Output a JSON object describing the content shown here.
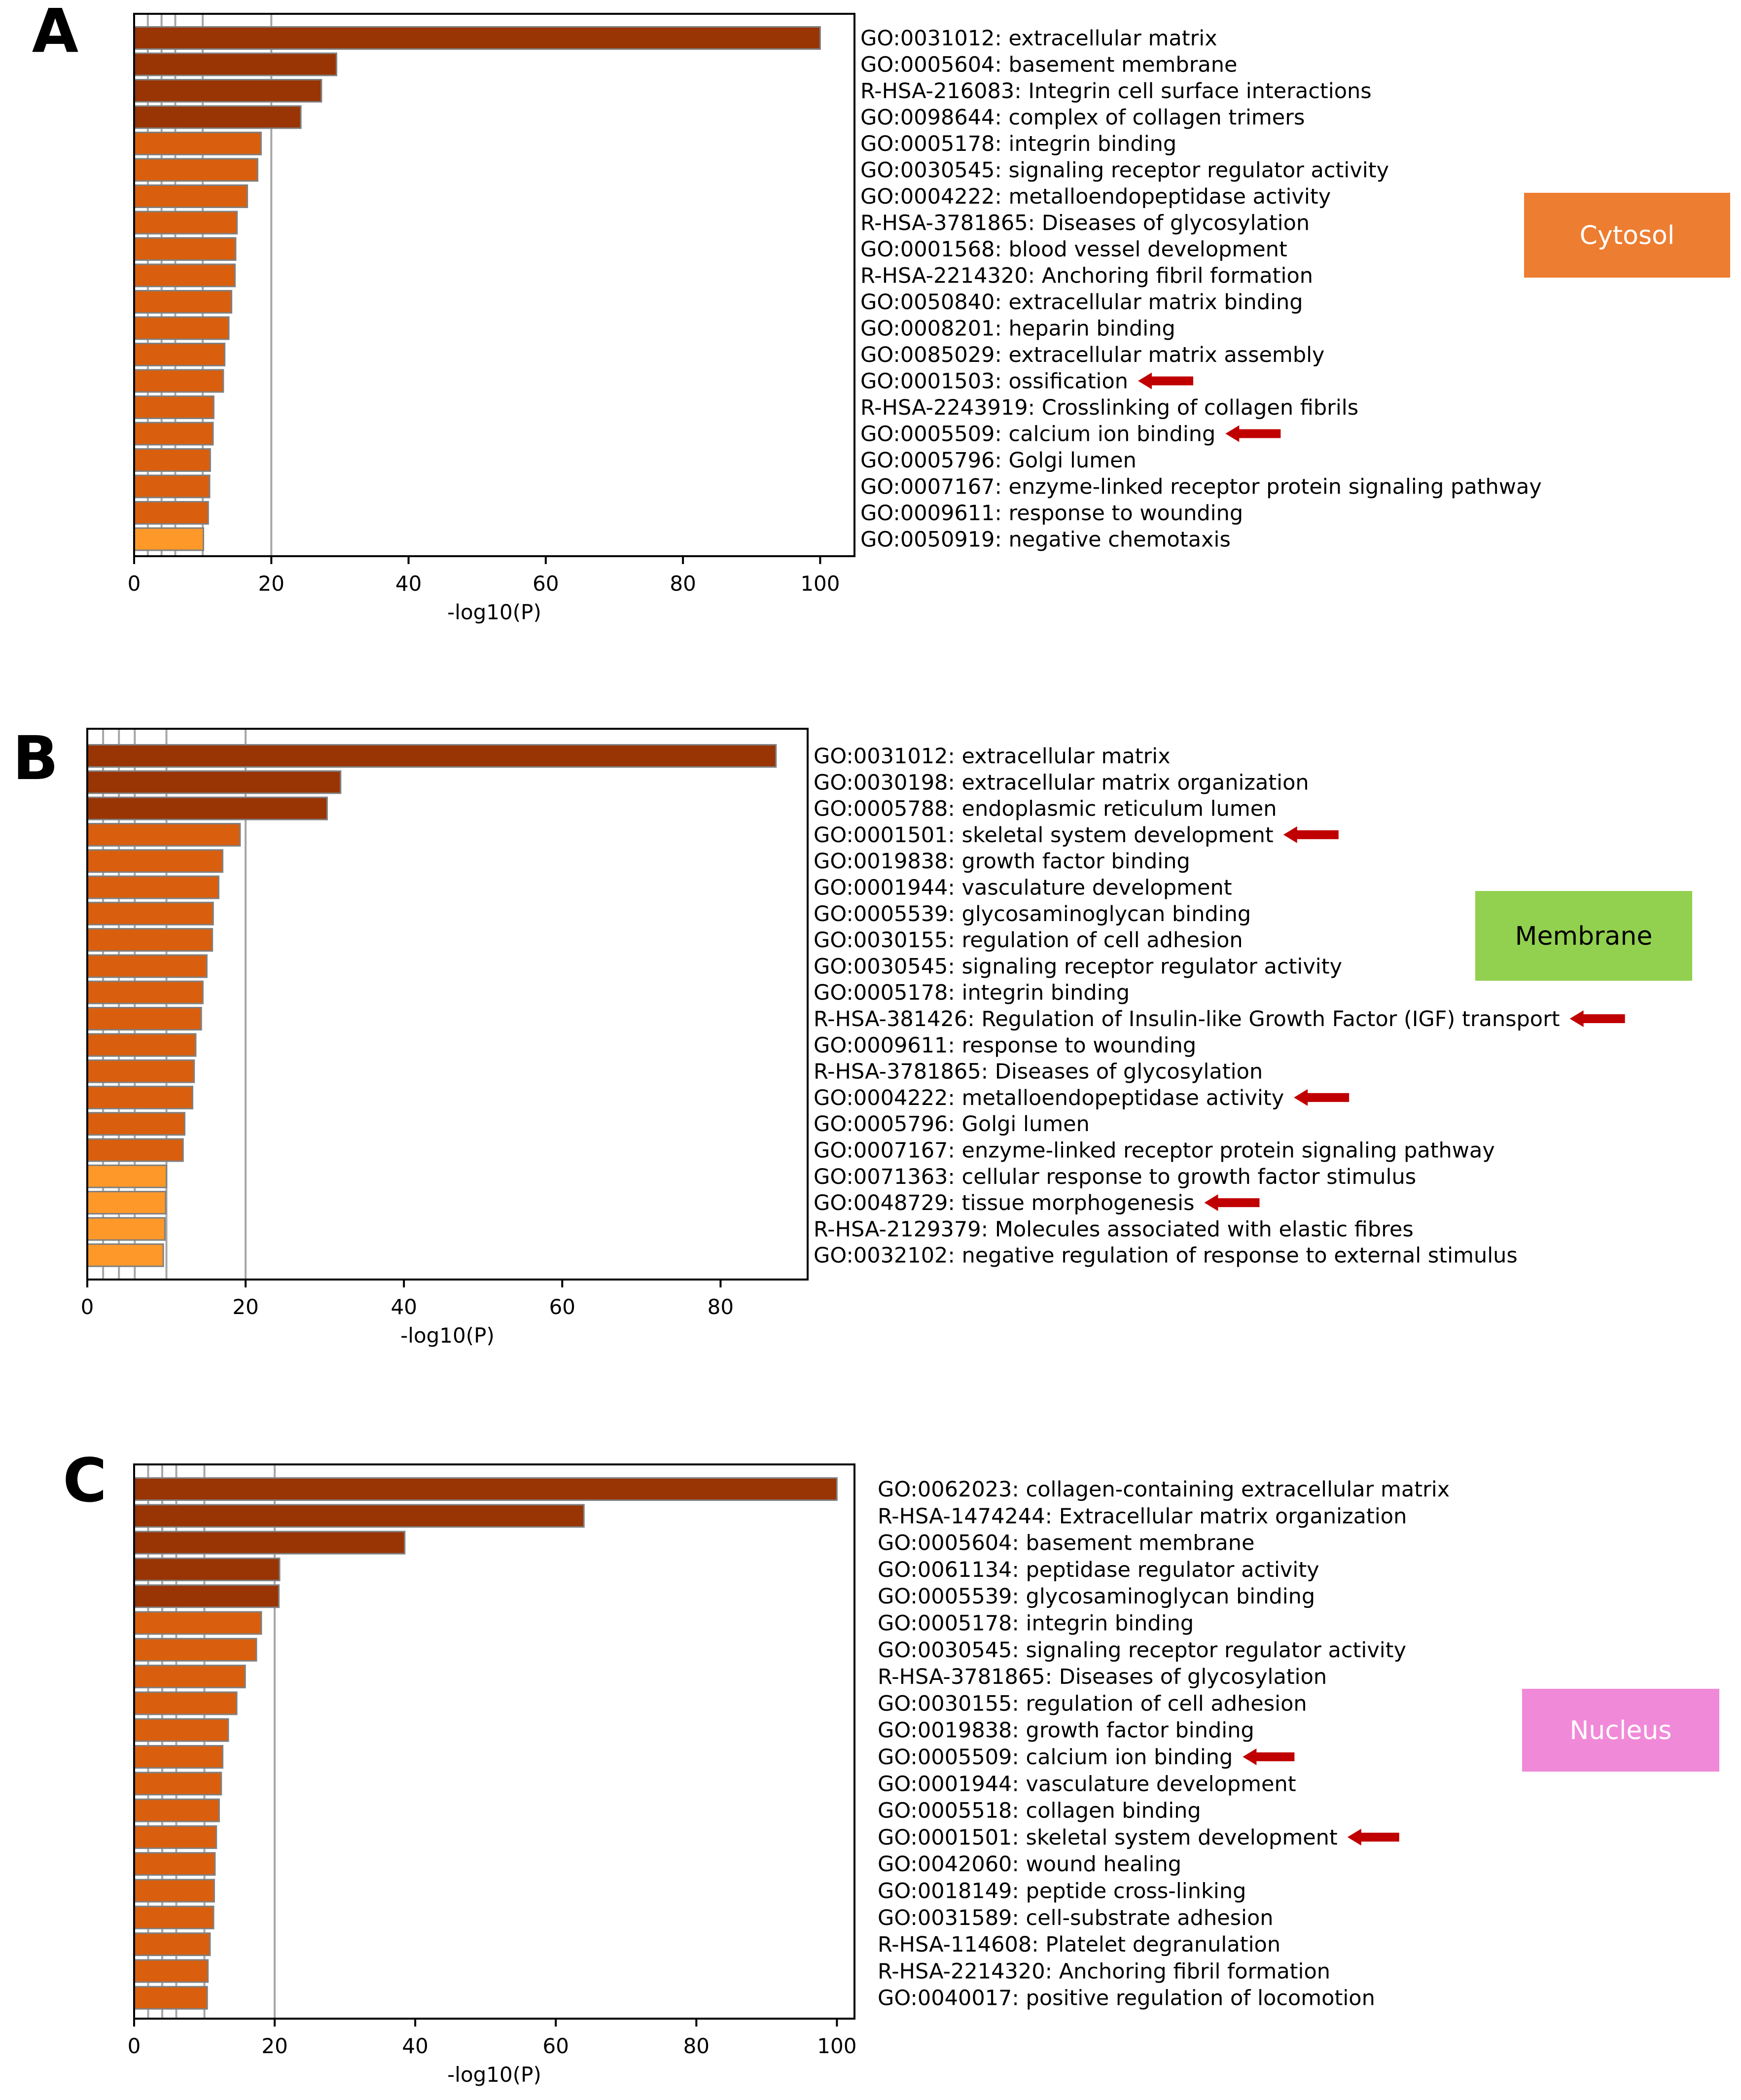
{
  "chart_data": [
    {
      "type": "bar",
      "orientation": "horizontal",
      "panel_label": "A",
      "compartment": "Cytosol",
      "xlabel": "-log10(P)",
      "xlim": [
        0,
        105
      ],
      "xticks": [
        0,
        20,
        40,
        60,
        80,
        100
      ],
      "reference_lines": [
        2,
        4,
        6,
        10,
        20
      ],
      "categories": [
        "GO:0031012: extracellular matrix",
        "GO:0005604: basement membrane",
        "R-HSA-216083: Integrin cell surface interactions",
        "GO:0098644: complex of collagen trimers",
        "GO:0005178: integrin binding",
        "GO:0030545: signaling receptor regulator activity",
        "GO:0004222: metalloendopeptidase activity",
        "R-HSA-3781865: Diseases of glycosylation",
        "GO:0001568: blood vessel development",
        "R-HSA-2214320: Anchoring fibril formation",
        "GO:0050840: extracellular matrix binding",
        "GO:0008201: heparin binding",
        "GO:0085029: extracellular matrix assembly",
        "GO:0001503: ossification",
        "R-HSA-2243919: Crosslinking of collagen fibrils",
        "GO:0005509: calcium ion binding",
        "GO:0005796: Golgi lumen",
        "GO:0007167: enzyme-linked receptor protein signaling pathway",
        "GO:0009611: response to wounding",
        "GO:0050919: negative chemotaxis"
      ],
      "values": [
        100,
        29.5,
        27.3,
        24.3,
        18.5,
        18.0,
        16.5,
        15.0,
        14.8,
        14.7,
        14.2,
        13.8,
        13.2,
        13.0,
        11.6,
        11.5,
        11.1,
        11.0,
        10.8,
        10.1
      ],
      "bar_colors": [
        "#993404",
        "#993404",
        "#993404",
        "#993404",
        "#d95f0e",
        "#d95f0e",
        "#d95f0e",
        "#d95f0e",
        "#d95f0e",
        "#d95f0e",
        "#d95f0e",
        "#d95f0e",
        "#d95f0e",
        "#d95f0e",
        "#d95f0e",
        "#d95f0e",
        "#d95f0e",
        "#d95f0e",
        "#d95f0e",
        "#fe9929"
      ],
      "highlighted": [
        "GO:0001503: ossification",
        "GO:0005509: calcium ion binding"
      ],
      "badge_color": "#ed7d31"
    },
    {
      "type": "bar",
      "orientation": "horizontal",
      "panel_label": "B",
      "compartment": "Membrane",
      "xlabel": "-log10(P)",
      "xlim": [
        0,
        91
      ],
      "xticks": [
        0,
        20,
        40,
        60,
        80
      ],
      "reference_lines": [
        2,
        4,
        6,
        10,
        20
      ],
      "categories": [
        "GO:0031012: extracellular matrix",
        "GO:0030198: extracellular matrix organization",
        "GO:0005788: endoplasmic reticulum lumen",
        "GO:0001501: skeletal system development",
        "GO:0019838: growth factor binding",
        "GO:0001944: vasculature development",
        "GO:0005539: glycosaminoglycan binding",
        "GO:0030155: regulation of cell adhesion",
        "GO:0030545: signaling receptor regulator activity",
        "GO:0005178: integrin binding",
        "R-HSA-381426: Regulation of Insulin-like Growth Factor (IGF) transport",
        "GO:0009611: response to wounding",
        "R-HSA-3781865: Diseases of glycosylation",
        "GO:0004222: metalloendopeptidase activity",
        "GO:0005796: Golgi lumen",
        "GO:0007167: enzyme-linked receptor protein signaling pathway",
        "GO:0071363: cellular response to growth factor stimulus",
        "GO:0048729: tissue morphogenesis",
        "R-HSA-2129379: Molecules associated with elastic fibres",
        "GO:0032102: negative regulation of response to external stimulus"
      ],
      "values": [
        87,
        32.0,
        30.3,
        19.3,
        17.1,
        16.6,
        15.9,
        15.8,
        15.1,
        14.6,
        14.4,
        13.7,
        13.5,
        13.3,
        12.3,
        12.1,
        10.0,
        9.9,
        9.8,
        9.6
      ],
      "bar_colors": [
        "#993404",
        "#993404",
        "#993404",
        "#d95f0e",
        "#d95f0e",
        "#d95f0e",
        "#d95f0e",
        "#d95f0e",
        "#d95f0e",
        "#d95f0e",
        "#d95f0e",
        "#d95f0e",
        "#d95f0e",
        "#d95f0e",
        "#d95f0e",
        "#d95f0e",
        "#fe9929",
        "#fe9929",
        "#fe9929",
        "#fe9929"
      ],
      "highlighted": [
        "GO:0001501: skeletal system development",
        "R-HSA-381426: Regulation of Insulin-like Growth Factor (IGF) transport",
        "GO:0004222: metalloendopeptidase activity",
        "GO:0048729: tissue morphogenesis"
      ],
      "badge_color": "#92d050"
    },
    {
      "type": "bar",
      "orientation": "horizontal",
      "panel_label": "C",
      "compartment": "Nucleus",
      "xlabel": "-log10(P)",
      "xlim": [
        0,
        102.5
      ],
      "xticks": [
        0,
        20,
        40,
        60,
        80,
        100
      ],
      "reference_lines": [
        2,
        4,
        6,
        10,
        20
      ],
      "categories": [
        "GO:0062023: collagen-containing extracellular matrix",
        "R-HSA-1474244: Extracellular matrix organization",
        "GO:0005604: basement membrane",
        "GO:0061134: peptidase regulator activity",
        "GO:0005539: glycosaminoglycan binding",
        "GO:0005178: integrin binding",
        "GO:0030545: signaling receptor regulator activity",
        "R-HSA-3781865: Diseases of glycosylation",
        "GO:0030155: regulation of cell adhesion",
        "GO:0019838: growth factor binding",
        "GO:0005509: calcium ion binding",
        "GO:0001944: vasculature development",
        "GO:0005518: collagen binding",
        "GO:0001501: skeletal system development",
        "GO:0042060: wound healing",
        "GO:0018149: peptide cross-linking",
        "GO:0031589: cell-substrate adhesion",
        "R-HSA-114608: Platelet degranulation",
        "R-HSA-2214320: Anchoring fibril formation",
        "GO:0040017: positive regulation of locomotion"
      ],
      "values": [
        100,
        64,
        38.5,
        20.7,
        20.6,
        18.1,
        17.4,
        15.8,
        14.6,
        13.4,
        12.6,
        12.4,
        12.1,
        11.7,
        11.5,
        11.4,
        11.3,
        10.8,
        10.5,
        10.4
      ],
      "bar_colors": [
        "#993404",
        "#993404",
        "#993404",
        "#993404",
        "#993404",
        "#d95f0e",
        "#d95f0e",
        "#d95f0e",
        "#d95f0e",
        "#d95f0e",
        "#d95f0e",
        "#d95f0e",
        "#d95f0e",
        "#d95f0e",
        "#d95f0e",
        "#d95f0e",
        "#d95f0e",
        "#d95f0e",
        "#d95f0e",
        "#d95f0e"
      ],
      "highlighted": [
        "GO:0005509: calcium ion binding",
        "GO:0001501: skeletal system development"
      ],
      "badge_color": "#f08ad8"
    }
  ],
  "colors": {
    "axis": "#000000",
    "reference_line": "#a6a6a6",
    "bar_edge": "#808080",
    "arrow": "#c00000",
    "badge_text": "#ffffff",
    "badge_text_dark": "#000000"
  }
}
